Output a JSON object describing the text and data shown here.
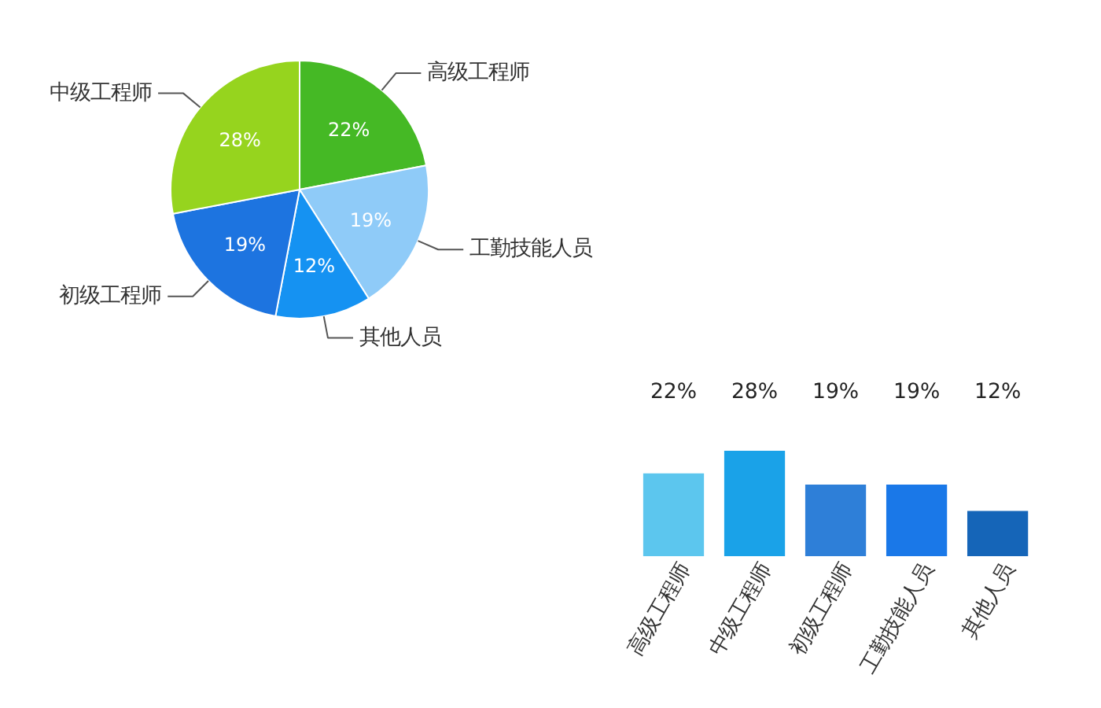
{
  "chart_data": [
    {
      "type": "pie",
      "categories": [
        "高级工程师",
        "工勤技能人员",
        "其他人员",
        "初级工程师",
        "中级工程师"
      ],
      "values": [
        22,
        19,
        12,
        19,
        28
      ],
      "colors": [
        "#45b925",
        "#8fcbf8",
        "#1592f2",
        "#1d74e0",
        "#96d41e"
      ],
      "value_labels": [
        "22%",
        "19%",
        "12%",
        "19%",
        "28%"
      ]
    },
    {
      "type": "bar",
      "categories": [
        "高级工程师",
        "中级工程师",
        "初级工程师",
        "工勤技能人员",
        "其他人员"
      ],
      "values": [
        22,
        28,
        19,
        19,
        12
      ],
      "colors": [
        "#5cc6ee",
        "#1aa2e8",
        "#2e7fd8",
        "#1a78e8",
        "#1565b8"
      ],
      "value_labels": [
        "22%",
        "28%",
        "19%",
        "19%",
        "12%"
      ]
    }
  ]
}
